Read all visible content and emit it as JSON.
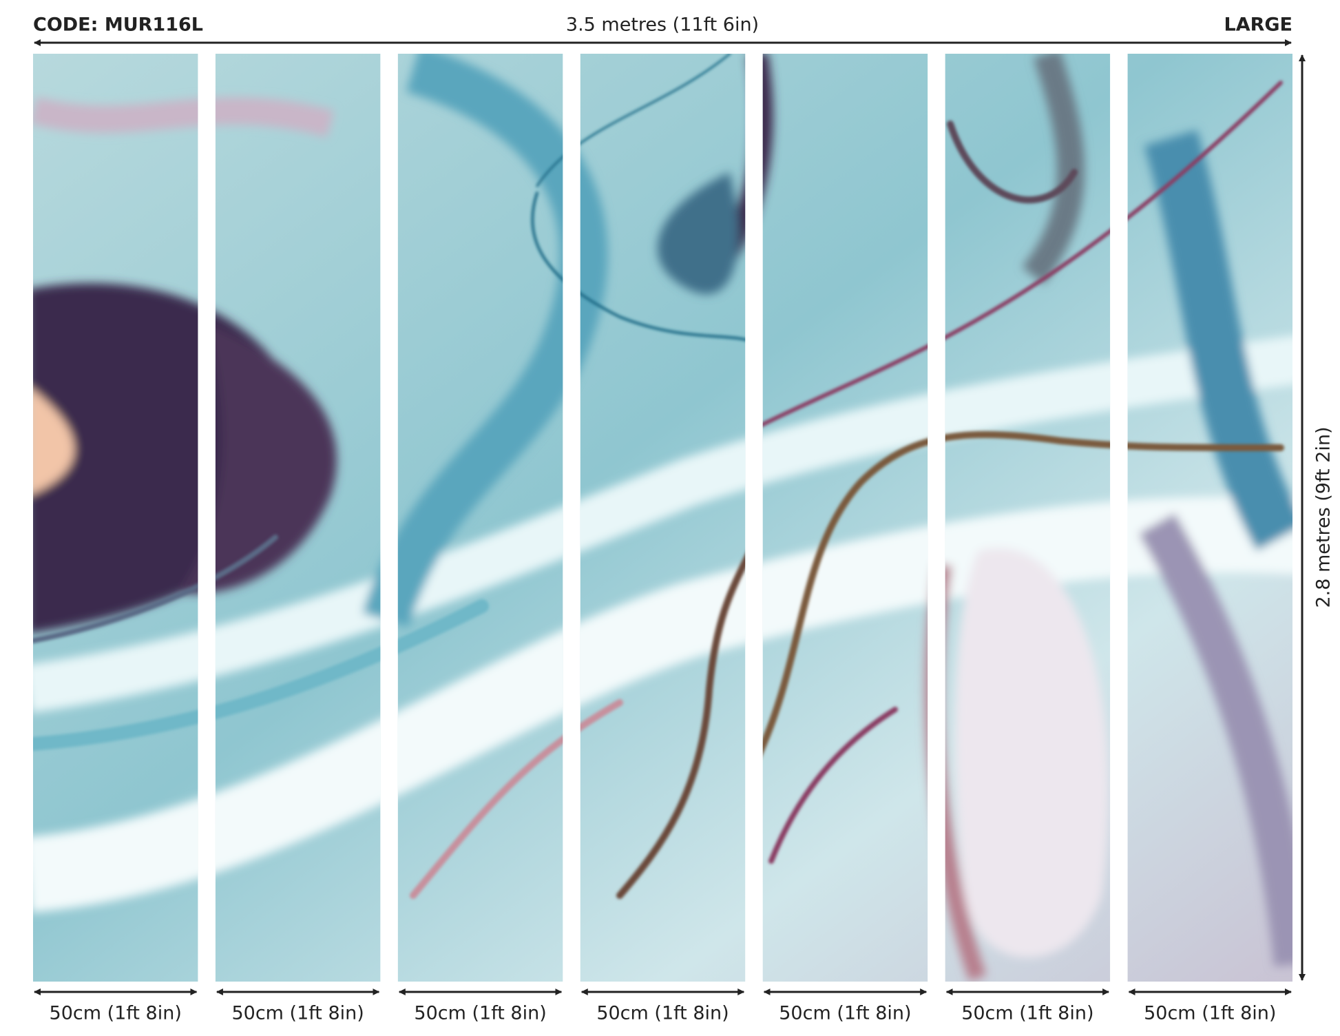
{
  "header": {
    "code": "CODE: MUR116L",
    "width": "3.5 metres (11ft 6in)",
    "size": "LARGE"
  },
  "height": "2.8 metres (9ft 2in)",
  "panels": [
    {
      "label": "50cm (1ft 8in)"
    },
    {
      "label": "50cm (1ft 8in)"
    },
    {
      "label": "50cm (1ft 8in)"
    },
    {
      "label": "50cm (1ft 8in)"
    },
    {
      "label": "50cm (1ft 8in)"
    },
    {
      "label": "50cm (1ft 8in)"
    },
    {
      "label": "50cm (1ft 8in)"
    }
  ]
}
